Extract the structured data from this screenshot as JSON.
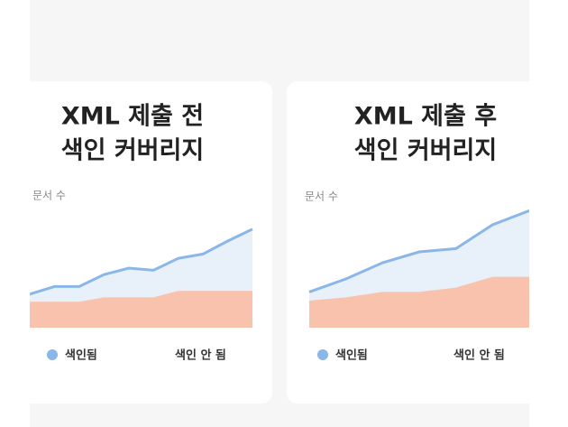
{
  "chart_data": [
    {
      "type": "area",
      "title": [
        "XML 제출 전",
        "색인 커버리지"
      ],
      "y_label": "문서 수",
      "categories": [
        null,
        null,
        null,
        null,
        null,
        null,
        null,
        null,
        null,
        null
      ],
      "ylim": [
        0,
        110
      ],
      "series": [
        {
          "name": "색인됨",
          "color": "#8ab6e8",
          "values": [
            31,
            38,
            38,
            49,
            55,
            53,
            64,
            68,
            80,
            91
          ]
        },
        {
          "name": "색인 안 됨",
          "color": "#f9c2ad",
          "values": [
            24,
            24,
            24,
            28,
            28,
            28,
            34,
            34,
            34,
            34
          ]
        }
      ]
    },
    {
      "type": "area",
      "title": [
        "XML 제출 후",
        "색인 커버리지"
      ],
      "y_label": "문서 수",
      "categories": [
        null,
        null,
        null,
        null,
        null,
        null,
        null
      ],
      "ylim": [
        0,
        110
      ],
      "series": [
        {
          "name": "색인됨",
          "color": "#8ab6e8",
          "values": [
            33,
            45,
            60,
            70,
            73,
            95,
            108
          ]
        },
        {
          "name": "색인 안 됨",
          "color": "#f9c2ad",
          "values": [
            25,
            28,
            33,
            33,
            37,
            47,
            47
          ]
        }
      ]
    }
  ]
}
